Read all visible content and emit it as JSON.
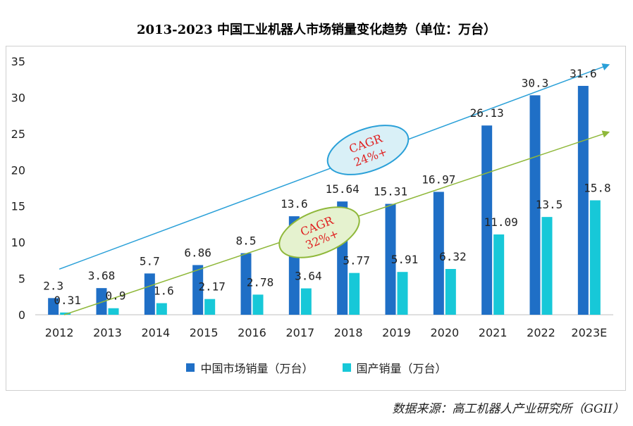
{
  "chart_data": {
    "type": "bar",
    "title": "2013-2023 中国工业机器人市场销量变化趋势（单位：万台）",
    "categories": [
      "2012",
      "2013",
      "2014",
      "2015",
      "2016",
      "2017",
      "2018",
      "2019",
      "2020",
      "2021",
      "2022",
      "2023E"
    ],
    "series": [
      {
        "name": "中国市场销量（万台）",
        "color": "#1f6fc6",
        "values": [
          2.3,
          3.68,
          5.7,
          6.86,
          8.5,
          13.6,
          15.64,
          15.31,
          16.97,
          26.13,
          30.3,
          31.6
        ]
      },
      {
        "name": "国产销量（万台）",
        "color": "#17c8d8",
        "values": [
          0.31,
          0.9,
          1.6,
          2.17,
          2.78,
          3.64,
          5.77,
          5.91,
          6.32,
          11.09,
          13.5,
          15.8
        ]
      }
    ],
    "data_labels": {
      "series0": [
        "2.3",
        "3.68",
        "5.7",
        "6.86",
        "8.5",
        "13.6",
        "15.64",
        "15.31",
        "16.97",
        "26.13",
        "30.3",
        "31.6"
      ],
      "series1": [
        "0.31",
        "0.9",
        "1.6",
        "2.17",
        "2.78",
        "3.64",
        "5.77",
        "5.91",
        "6.32",
        "11.09",
        "13.5",
        "15.8"
      ]
    },
    "ylim": [
      0,
      35
    ],
    "yticks": [
      0,
      5,
      10,
      15,
      20,
      25,
      30,
      35
    ],
    "legend_position": "bottom",
    "annotations": [
      {
        "name": "cagr-market",
        "line1": "CAGR",
        "line2": "24%+",
        "arrow_color": "#2aa0d8",
        "ellipse_stroke": "#2aa0d8",
        "ellipse_fill": "#d9f0f7",
        "arrow_from": [
          2012,
          6.3
        ],
        "arrow_to": [
          2023.4,
          34.5
        ]
      },
      {
        "name": "cagr-domestic",
        "line1": "CAGR",
        "line2": "32%+",
        "arrow_color": "#8fb83a",
        "ellipse_stroke": "#8fb83a",
        "ellipse_fill": "#e5f2cf",
        "arrow_from": [
          2012.1,
          0
        ],
        "arrow_to": [
          2023.4,
          25.2
        ]
      }
    ],
    "annotation_text_color": "#e02020"
  },
  "source": "数据来源：高工机器人产业研究所（GGII）"
}
